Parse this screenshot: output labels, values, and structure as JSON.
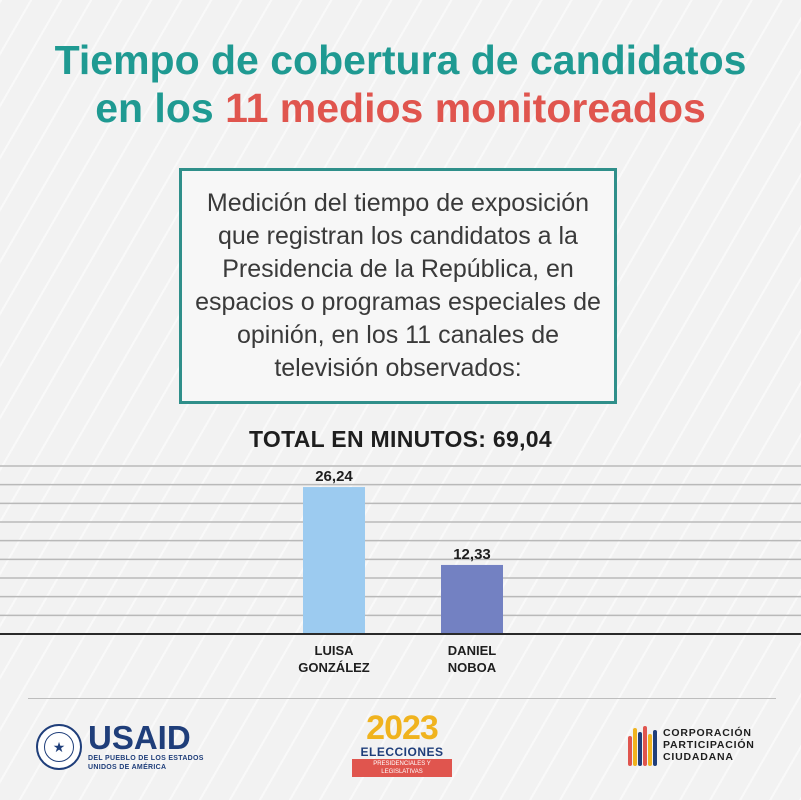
{
  "title": {
    "line1": "Tiempo de cobertura de candidatos",
    "line2_pre": "en los ",
    "line2_accent": "11 medios monitoreados"
  },
  "description": "Medición del tiempo de exposición que registran los candidatos a la Presidencia de la República, en espacios o programas especiales de opinión, en los 11 canales de televisión observados:",
  "total_label": "TOTAL EN MINUTOS: 69,04",
  "chart_data": {
    "type": "bar",
    "categories": [
      "LUISA GONZÁLEZ",
      "DANIEL NOBOA"
    ],
    "category_lines": [
      [
        "LUISA",
        "GONZÁLEZ"
      ],
      [
        "DANIEL",
        "NOBOA"
      ]
    ],
    "values": [
      26.24,
      12.33
    ],
    "value_labels": [
      "26,24",
      "12,33"
    ],
    "colors": [
      "#9ccbf0",
      "#7381c2"
    ],
    "ylim": [
      0,
      30
    ],
    "grid": true
  },
  "footer": {
    "usaid_name": "USAID",
    "usaid_sub1": "DEL PUEBLO DE LOS ESTADOS",
    "usaid_sub2": "UNIDOS DE AMÉRICA",
    "elecciones_year": "2023",
    "elecciones_word": "ELECCIONES",
    "elecciones_band": "PRESIDENCIALES Y LEGISLATIVAS",
    "cpc_line1": "CORPORACIÓN",
    "cpc_line2": "PARTICIPACIÓN",
    "cpc_line3": "CIUDADANA"
  }
}
